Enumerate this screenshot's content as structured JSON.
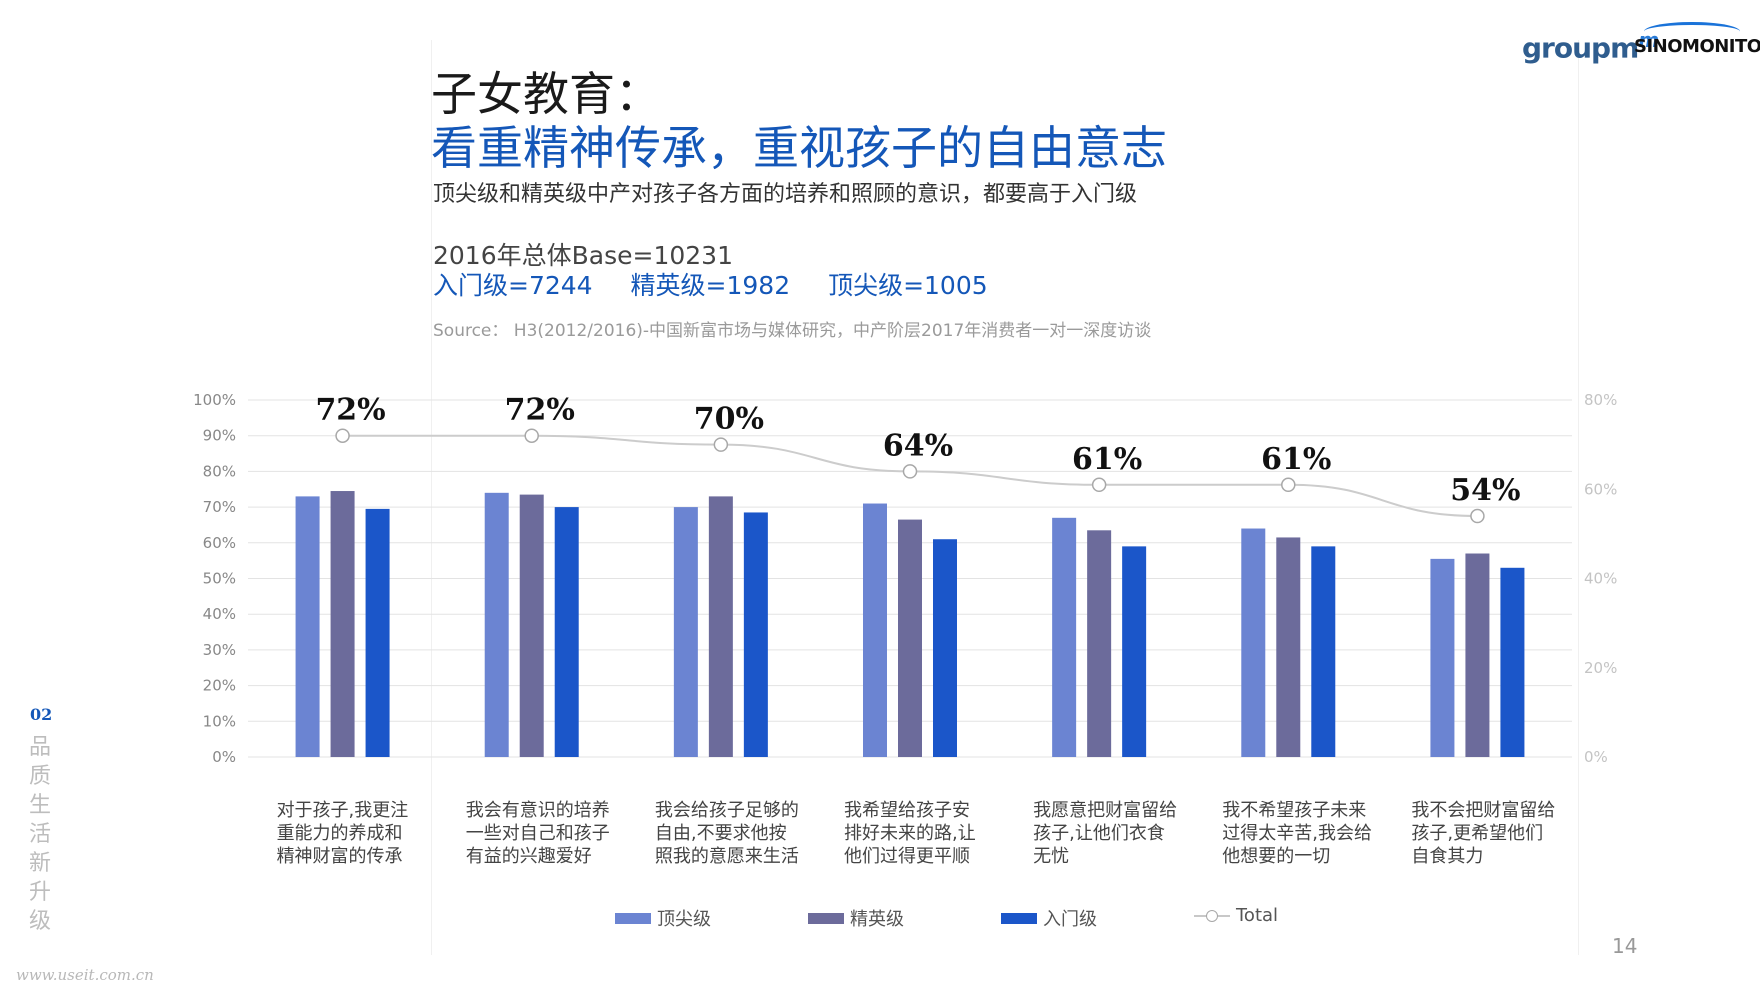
{
  "header": {
    "title_line1": "子女教育：",
    "title_line2": "看重精神传承，重视孩子的自由意志",
    "subtitle": "顶尖级和精英级中产对孩子各方面的培养和照顾的意识，都要高于入门级",
    "base_total": "2016年总体Base=10231",
    "base_groups": [
      "入门级=7244",
      "精英级=1982",
      "顶尖级=1005"
    ],
    "source": "Source： H3(2012/2016)-中国新富市场与媒体研究，中产阶层2017年消费者一对一深度访谈"
  },
  "logos": {
    "groupm": "groupm",
    "groupm_suffix": "m",
    "sinomonitor": "SINOMONITOR"
  },
  "sidebar": {
    "section_number": "02",
    "section_title": [
      "品",
      "质",
      "生",
      "活",
      "新",
      "升",
      "级"
    ]
  },
  "footer": {
    "page_number": "14",
    "watermark": "www.useit.com.cn"
  },
  "colors": {
    "top": "#6b84d2",
    "elite": "#6c6b9b",
    "entry": "#1b56c9",
    "total_line": "#cccccc",
    "title_blue": "#1457b8"
  },
  "chart_data": {
    "type": "bar",
    "categories": [
      [
        "对于孩子,我更注",
        "重能力的养成和",
        "精神财富的传承"
      ],
      [
        "我会有意识的培养",
        "一些对自己和孩子",
        "有益的兴趣爱好"
      ],
      [
        "我会给孩子足够的",
        "自由,不要求他按",
        "照我的意愿来生活"
      ],
      [
        "我希望给孩子安",
        "排好未来的路,让",
        "他们过得更平顺"
      ],
      [
        "我愿意把财富留给",
        "孩子,让他们衣食",
        "无忧"
      ],
      [
        "我不希望孩子未来",
        "过得太辛苦,我会给",
        "他想要的一切"
      ],
      [
        "我不会把财富留给",
        "孩子,更希望他们",
        "自食其力"
      ]
    ],
    "series": [
      {
        "name": "顶尖级",
        "axis": "left",
        "values": [
          73,
          74,
          70,
          71,
          67,
          64,
          55.5
        ]
      },
      {
        "name": "精英级",
        "axis": "left",
        "values": [
          74.5,
          73.5,
          73,
          66.5,
          63.5,
          61.5,
          57
        ]
      },
      {
        "name": "入门级",
        "axis": "left",
        "values": [
          69.5,
          70,
          68.5,
          61,
          59,
          59,
          53
        ]
      },
      {
        "name": "Total",
        "axis": "right",
        "type": "line",
        "values": [
          72,
          72,
          70,
          64,
          61,
          61,
          54
        ],
        "labels": [
          "72%",
          "72%",
          "70%",
          "64%",
          "61%",
          "61%",
          "54%"
        ]
      }
    ],
    "y_left": {
      "min": 0,
      "max": 100,
      "ticks": [
        "0%",
        "10%",
        "20%",
        "30%",
        "40%",
        "50%",
        "60%",
        "70%",
        "80%",
        "90%",
        "100%"
      ]
    },
    "y_right": {
      "min": 0,
      "max": 80,
      "ticks": [
        "0%",
        "20%",
        "40%",
        "60%",
        "80%"
      ]
    },
    "grid": true,
    "legend_position": "bottom"
  }
}
